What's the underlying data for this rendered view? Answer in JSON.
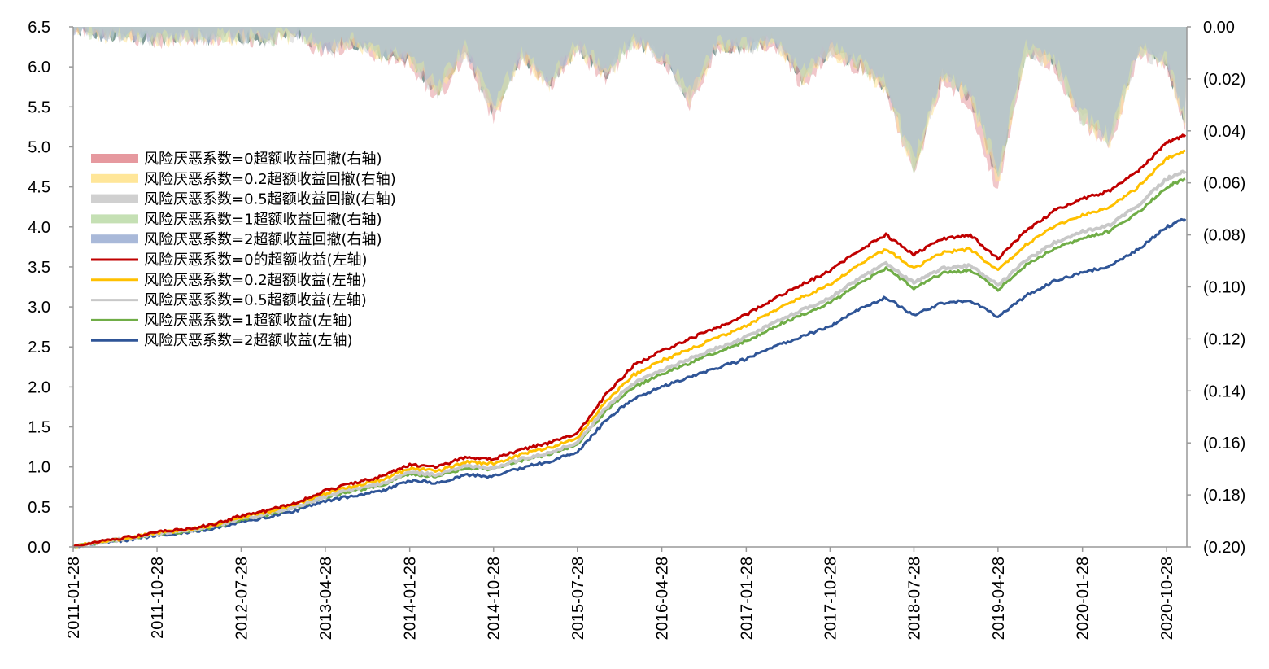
{
  "chart_data": {
    "type": "line",
    "x_dates": [
      "2011-01-28",
      "2011-04-28",
      "2011-07-28",
      "2011-10-28",
      "2012-01-28",
      "2012-04-28",
      "2012-07-28",
      "2012-10-28",
      "2013-01-28",
      "2013-04-28",
      "2013-07-28",
      "2013-10-28",
      "2014-01-28",
      "2014-04-28",
      "2014-07-28",
      "2014-10-28",
      "2015-01-28",
      "2015-04-28",
      "2015-07-28",
      "2015-10-28",
      "2016-01-28",
      "2016-04-28",
      "2016-07-28",
      "2016-10-28",
      "2017-01-28",
      "2017-04-28",
      "2017-07-28",
      "2017-10-28",
      "2018-01-28",
      "2018-04-28",
      "2018-07-28",
      "2018-10-28",
      "2019-01-28",
      "2019-04-28",
      "2019-07-28",
      "2019-10-28",
      "2020-01-28",
      "2020-04-28",
      "2020-07-28",
      "2020-10-28",
      "2020-12-28"
    ],
    "x_tick_labels": [
      "2011-01-28",
      "2011-10-28",
      "2012-07-28",
      "2013-04-28",
      "2014-01-28",
      "2014-10-28",
      "2015-07-28",
      "2016-04-28",
      "2017-01-28",
      "2017-10-28",
      "2018-07-28",
      "2019-04-28",
      "2020-01-28",
      "2020-10-28"
    ],
    "left_axis": {
      "ylim": [
        0,
        6.5
      ],
      "tick_labels": [
        "0.0",
        "0.5",
        "1.0",
        "1.5",
        "2.0",
        "2.5",
        "3.0",
        "3.5",
        "4.0",
        "4.5",
        "5.0",
        "5.5",
        "6.0",
        "6.5"
      ]
    },
    "right_axis": {
      "ylim": [
        -0.2,
        0.0
      ],
      "tick_labels": [
        "0.00",
        "(0.02)",
        "(0.04)",
        "(0.06)",
        "(0.08)",
        "(0.10)",
        "(0.12)",
        "(0.14)",
        "(0.16)",
        "(0.18)",
        "(0.20)"
      ]
    },
    "series": [
      {
        "name": "风险厌恶系数=0的超额收益(左轴)",
        "axis": "left",
        "color": "#c00000",
        "values": [
          0,
          0.07,
          0.12,
          0.19,
          0.22,
          0.28,
          0.39,
          0.46,
          0.56,
          0.7,
          0.8,
          0.88,
          1.03,
          1.0,
          1.12,
          1.1,
          1.22,
          1.3,
          1.42,
          1.9,
          2.27,
          2.45,
          2.6,
          2.75,
          2.9,
          3.1,
          3.28,
          3.45,
          3.7,
          3.9,
          3.65,
          3.85,
          3.9,
          3.6,
          3.95,
          4.2,
          4.35,
          4.45,
          4.7,
          5.05,
          5.15
        ]
      },
      {
        "name": "风险厌恶系数=0.2超额收益(左轴)",
        "axis": "left",
        "color": "#ffc000",
        "values": [
          0,
          0.07,
          0.11,
          0.18,
          0.21,
          0.27,
          0.37,
          0.44,
          0.54,
          0.67,
          0.76,
          0.84,
          0.98,
          0.95,
          1.06,
          1.04,
          1.16,
          1.24,
          1.36,
          1.82,
          2.15,
          2.33,
          2.47,
          2.62,
          2.76,
          2.95,
          3.12,
          3.28,
          3.52,
          3.72,
          3.48,
          3.68,
          3.72,
          3.45,
          3.78,
          4.0,
          4.15,
          4.25,
          4.5,
          4.85,
          4.95
        ]
      },
      {
        "name": "风险厌恶系数=0.5超额收益(左轴)",
        "axis": "left",
        "color": "#c8c8c8",
        "values": [
          0,
          0.065,
          0.105,
          0.17,
          0.2,
          0.26,
          0.35,
          0.42,
          0.51,
          0.63,
          0.72,
          0.79,
          0.93,
          0.9,
          1.01,
          0.99,
          1.1,
          1.18,
          1.3,
          1.74,
          2.05,
          2.21,
          2.35,
          2.49,
          2.62,
          2.8,
          2.96,
          3.11,
          3.35,
          3.55,
          3.3,
          3.48,
          3.52,
          3.27,
          3.58,
          3.8,
          3.94,
          4.03,
          4.27,
          4.6,
          4.7
        ]
      },
      {
        "name": "风险厌恶系数=1超额收益(左轴)",
        "axis": "left",
        "color": "#70ad47",
        "values": [
          0,
          0.06,
          0.1,
          0.165,
          0.195,
          0.25,
          0.34,
          0.41,
          0.5,
          0.62,
          0.7,
          0.77,
          0.91,
          0.88,
          0.99,
          0.97,
          1.08,
          1.16,
          1.28,
          1.7,
          2.0,
          2.16,
          2.3,
          2.44,
          2.57,
          2.75,
          2.9,
          3.05,
          3.28,
          3.48,
          3.24,
          3.42,
          3.46,
          3.22,
          3.52,
          3.73,
          3.86,
          3.95,
          4.18,
          4.5,
          4.6
        ]
      },
      {
        "name": "风险厌恶系数=2超额收益(左轴)",
        "axis": "left",
        "color": "#2f5597",
        "values": [
          0,
          0.055,
          0.09,
          0.15,
          0.18,
          0.23,
          0.31,
          0.38,
          0.46,
          0.57,
          0.64,
          0.7,
          0.83,
          0.8,
          0.9,
          0.88,
          0.99,
          1.07,
          1.18,
          1.58,
          1.86,
          2.0,
          2.12,
          2.24,
          2.35,
          2.5,
          2.63,
          2.76,
          2.96,
          3.12,
          2.9,
          3.05,
          3.08,
          2.87,
          3.14,
          3.32,
          3.43,
          3.51,
          3.72,
          4.0,
          4.1
        ]
      },
      {
        "name": "风险厌恶系数=0超额收益回撤(右轴)",
        "axis": "right",
        "type": "area",
        "color": "#e6999f",
        "values": [
          0,
          -0.004,
          -0.003,
          -0.006,
          -0.004,
          -0.005,
          -0.004,
          -0.006,
          -0.003,
          -0.01,
          -0.006,
          -0.012,
          -0.014,
          -0.028,
          -0.01,
          -0.036,
          -0.012,
          -0.024,
          -0.009,
          -0.02,
          -0.006,
          -0.012,
          -0.03,
          -0.008,
          -0.009,
          -0.006,
          -0.022,
          -0.01,
          -0.016,
          -0.025,
          -0.058,
          -0.02,
          -0.03,
          -0.064,
          -0.01,
          -0.015,
          -0.038,
          -0.045,
          -0.01,
          -0.015,
          -0.04
        ]
      },
      {
        "name": "风险厌恶系数=0.2超额收益回撤(右轴)",
        "axis": "right",
        "type": "area",
        "color": "#ffe699",
        "values": [
          0,
          -0.004,
          -0.003,
          -0.005,
          -0.004,
          -0.005,
          -0.004,
          -0.005,
          -0.003,
          -0.009,
          -0.006,
          -0.011,
          -0.013,
          -0.026,
          -0.009,
          -0.034,
          -0.011,
          -0.022,
          -0.008,
          -0.019,
          -0.006,
          -0.011,
          -0.028,
          -0.007,
          -0.008,
          -0.006,
          -0.02,
          -0.009,
          -0.015,
          -0.024,
          -0.056,
          -0.019,
          -0.028,
          -0.06,
          -0.009,
          -0.014,
          -0.037,
          -0.044,
          -0.009,
          -0.014,
          -0.038
        ]
      },
      {
        "name": "风险厌恶系数=0.5超额收益回撤(右轴)",
        "axis": "right",
        "type": "area",
        "color": "#d0d0d0",
        "values": [
          0,
          -0.003,
          -0.003,
          -0.005,
          -0.004,
          -0.004,
          -0.004,
          -0.005,
          -0.003,
          -0.009,
          -0.005,
          -0.01,
          -0.012,
          -0.025,
          -0.009,
          -0.033,
          -0.011,
          -0.021,
          -0.008,
          -0.018,
          -0.005,
          -0.011,
          -0.027,
          -0.007,
          -0.008,
          -0.005,
          -0.02,
          -0.009,
          -0.014,
          -0.023,
          -0.055,
          -0.018,
          -0.027,
          -0.058,
          -0.009,
          -0.014,
          -0.036,
          -0.044,
          -0.009,
          -0.014,
          -0.037
        ]
      },
      {
        "name": "风险厌恶系数=1超额收益回撤(右轴)",
        "axis": "right",
        "type": "area",
        "color": "#c5e0b4",
        "values": [
          0,
          -0.003,
          -0.003,
          -0.005,
          -0.003,
          -0.004,
          -0.003,
          -0.005,
          -0.003,
          -0.008,
          -0.005,
          -0.01,
          -0.012,
          -0.024,
          -0.008,
          -0.032,
          -0.01,
          -0.02,
          -0.007,
          -0.017,
          -0.005,
          -0.01,
          -0.026,
          -0.007,
          -0.007,
          -0.005,
          -0.019,
          -0.008,
          -0.014,
          -0.022,
          -0.054,
          -0.018,
          -0.026,
          -0.057,
          -0.009,
          -0.013,
          -0.035,
          -0.043,
          -0.009,
          -0.013,
          -0.036
        ]
      },
      {
        "name": "风险厌恶系数=2超额收益回撤(右轴)",
        "axis": "right",
        "type": "area",
        "color": "#a9b9d9",
        "values": [
          0,
          -0.003,
          -0.002,
          -0.004,
          -0.003,
          -0.004,
          -0.003,
          -0.004,
          -0.002,
          -0.008,
          -0.005,
          -0.009,
          -0.011,
          -0.022,
          -0.008,
          -0.03,
          -0.01,
          -0.019,
          -0.007,
          -0.016,
          -0.005,
          -0.01,
          -0.025,
          -0.006,
          -0.007,
          -0.005,
          -0.018,
          -0.008,
          -0.013,
          -0.021,
          -0.052,
          -0.017,
          -0.025,
          -0.054,
          -0.008,
          -0.012,
          -0.034,
          -0.042,
          -0.008,
          -0.012,
          -0.035
        ]
      }
    ],
    "legend": [
      {
        "label": "风险厌恶系数=0超额收益回撤(右轴)",
        "color": "#e6999f",
        "kind": "area"
      },
      {
        "label": "风险厌恶系数=0.2超额收益回撤(右轴)",
        "color": "#ffe699",
        "kind": "area"
      },
      {
        "label": "风险厌恶系数=0.5超额收益回撤(右轴)",
        "color": "#d0d0d0",
        "kind": "area"
      },
      {
        "label": "风险厌恶系数=1超额收益回撤(右轴)",
        "color": "#c5e0b4",
        "kind": "area"
      },
      {
        "label": "风险厌恶系数=2超额收益回撤(右轴)",
        "color": "#a9b9d9",
        "kind": "area"
      },
      {
        "label": "风险厌恶系数=0的超额收益(左轴)",
        "color": "#c00000",
        "kind": "line"
      },
      {
        "label": "风险厌恶系数=0.2超额收益(左轴)",
        "color": "#ffc000",
        "kind": "line"
      },
      {
        "label": "风险厌恶系数=0.5超额收益(左轴)",
        "color": "#c8c8c8",
        "kind": "line"
      },
      {
        "label": "风险厌恶系数=1超额收益(左轴)",
        "color": "#70ad47",
        "kind": "line"
      },
      {
        "label": "风险厌恶系数=2超额收益(左轴)",
        "color": "#2f5597",
        "kind": "line"
      }
    ],
    "drawdown_fill_color": "#7f9a96",
    "legend_placement": "left-middle",
    "grid": false
  }
}
